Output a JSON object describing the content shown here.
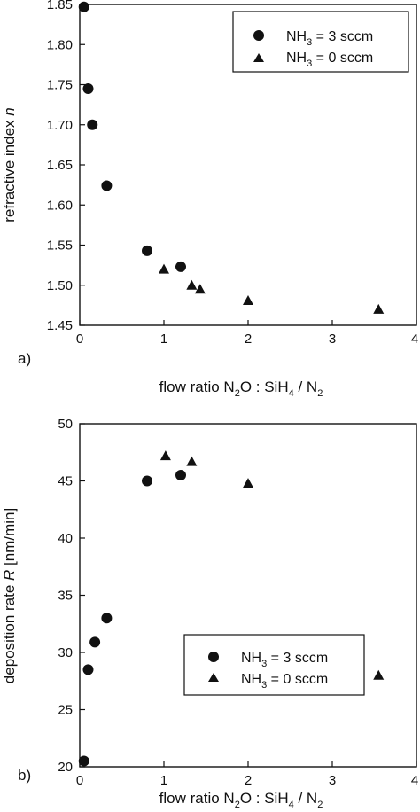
{
  "chart_data": [
    {
      "type": "scatter",
      "panel_label": "a)",
      "xlabel": {
        "prefix": "flow ratio N",
        "sub1": "2",
        "mid": "O : SiH",
        "sub2": "4",
        "mid2": " / N",
        "sub3": "2"
      },
      "ylabel": {
        "text": "refractive index ",
        "italic": "n"
      },
      "xlim": [
        0,
        4
      ],
      "ylim": [
        1.45,
        1.85
      ],
      "xticks": [
        "0",
        "1",
        "2",
        "3",
        "4"
      ],
      "yticks": [
        "1.45",
        "1.50",
        "1.55",
        "1.60",
        "1.65",
        "1.70",
        "1.75",
        "1.80",
        "1.85"
      ],
      "ytick_values": [
        1.45,
        1.5,
        1.55,
        1.6,
        1.65,
        1.7,
        1.75,
        1.8,
        1.85
      ],
      "legend_position": "top-right",
      "series": [
        {
          "name": {
            "pre": "NH",
            "sub": "3",
            "post": " = 3 sccm"
          },
          "marker": "circle",
          "x": [
            0.05,
            0.1,
            0.15,
            0.32,
            0.8,
            1.2
          ],
          "y": [
            1.847,
            1.745,
            1.7,
            1.624,
            1.543,
            1.523
          ]
        },
        {
          "name": {
            "pre": "NH",
            "sub": "3",
            "post": " = 0 sccm"
          },
          "marker": "triangle",
          "x": [
            1.0,
            1.33,
            1.43,
            2.0,
            3.55
          ],
          "y": [
            1.52,
            1.5,
            1.495,
            1.481,
            1.47
          ]
        }
      ]
    },
    {
      "type": "scatter",
      "panel_label": "b)",
      "xlabel": {
        "prefix": "flow ratio N",
        "sub1": "2",
        "mid": "O : SiH",
        "sub2": "4",
        "mid2": " / N",
        "sub3": "2"
      },
      "ylabel": {
        "text": "deposition rate ",
        "italic": "R",
        "post": " [nm/min]"
      },
      "xlim": [
        0,
        4
      ],
      "ylim": [
        20,
        50
      ],
      "xticks": [
        "0",
        "1",
        "2",
        "3",
        "4"
      ],
      "yticks": [
        "20",
        "25",
        "30",
        "35",
        "40",
        "45",
        "50"
      ],
      "ytick_values": [
        20,
        25,
        30,
        35,
        40,
        45,
        50
      ],
      "legend_position": "bottom-center",
      "series": [
        {
          "name": {
            "pre": "NH",
            "sub": "3",
            "post": " = 3 sccm"
          },
          "marker": "circle",
          "x": [
            0.05,
            0.1,
            0.18,
            0.32,
            0.8,
            1.2
          ],
          "y": [
            20.5,
            28.5,
            30.9,
            33.0,
            45.0,
            45.5
          ]
        },
        {
          "name": {
            "pre": "NH",
            "sub": "3",
            "post": " = 0 sccm"
          },
          "marker": "triangle",
          "x": [
            1.02,
            1.33,
            2.0,
            3.55
          ],
          "y": [
            47.2,
            46.7,
            44.8,
            28.0
          ]
        }
      ]
    }
  ]
}
